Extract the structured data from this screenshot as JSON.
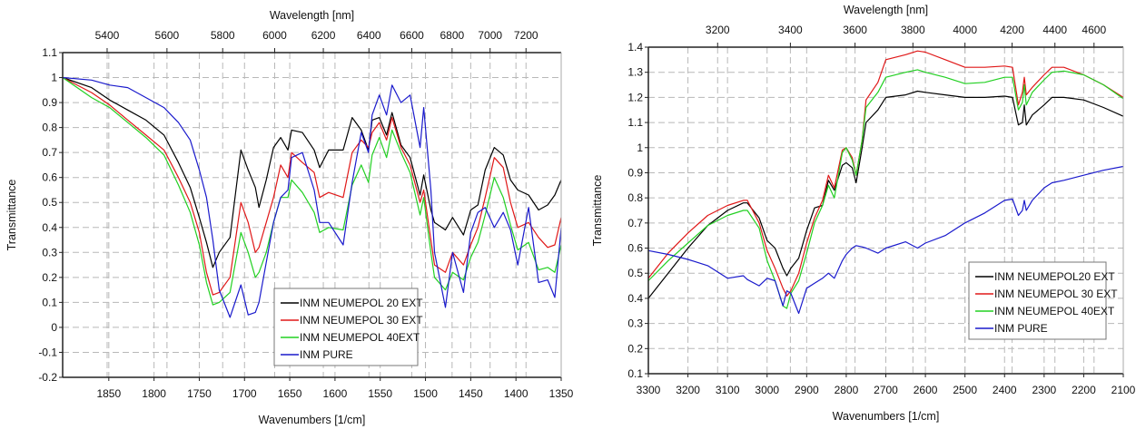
{
  "chart_data": [
    {
      "type": "line",
      "title": "",
      "xlabel": "Wavenumbers [1/cm]",
      "x2label": "Wavelength [nm]",
      "ylabel": "Transmittance",
      "xlim": [
        1901,
        1350
      ],
      "ylim": [
        -0.2,
        1.1
      ],
      "xticks": [
        1850,
        1800,
        1750,
        1700,
        1650,
        1600,
        1550,
        1500,
        1450,
        1400,
        1350
      ],
      "x2ticks": [
        5400,
        5600,
        5800,
        6000,
        6200,
        6400,
        6600,
        6800,
        7000,
        7200
      ],
      "yticks": [
        -0.2,
        -0.1,
        0,
        0.1,
        0.2,
        0.3,
        0.4,
        0.5,
        0.6,
        0.7,
        0.8,
        0.9,
        1,
        1.1
      ],
      "grid": true,
      "legend_position": "bottom-center",
      "x": [
        1901,
        1869,
        1849,
        1829,
        1809,
        1789,
        1773,
        1760,
        1750,
        1742,
        1735,
        1728,
        1716,
        1704,
        1696,
        1688,
        1684,
        1676,
        1668,
        1660,
        1652,
        1648,
        1636,
        1623,
        1617,
        1607,
        1591,
        1581,
        1571,
        1563,
        1559,
        1551,
        1543,
        1537,
        1527,
        1517,
        1506,
        1502,
        1494,
        1490,
        1478,
        1470,
        1458,
        1450,
        1442,
        1434,
        1424,
        1414,
        1406,
        1398,
        1386,
        1375,
        1365,
        1357,
        1350
      ],
      "series": [
        {
          "name": "INM NEUMEPOL 20 EXT",
          "color": "#000000",
          "values": [
            1.0,
            0.96,
            0.91,
            0.87,
            0.83,
            0.77,
            0.66,
            0.56,
            0.44,
            0.34,
            0.24,
            0.3,
            0.36,
            0.71,
            0.63,
            0.56,
            0.48,
            0.59,
            0.72,
            0.76,
            0.71,
            0.79,
            0.78,
            0.71,
            0.64,
            0.71,
            0.71,
            0.84,
            0.79,
            0.71,
            0.83,
            0.84,
            0.77,
            0.86,
            0.73,
            0.68,
            0.53,
            0.61,
            0.47,
            0.42,
            0.39,
            0.44,
            0.37,
            0.47,
            0.49,
            0.63,
            0.72,
            0.69,
            0.59,
            0.55,
            0.53,
            0.47,
            0.49,
            0.53,
            0.59
          ]
        },
        {
          "name": "INM NEUMEPOL 30 EXT",
          "color": "#e01818",
          "values": [
            1.0,
            0.94,
            0.89,
            0.83,
            0.77,
            0.71,
            0.6,
            0.5,
            0.38,
            0.22,
            0.13,
            0.14,
            0.2,
            0.5,
            0.42,
            0.3,
            0.32,
            0.42,
            0.52,
            0.65,
            0.6,
            0.7,
            0.66,
            0.62,
            0.52,
            0.54,
            0.52,
            0.7,
            0.75,
            0.72,
            0.78,
            0.82,
            0.75,
            0.84,
            0.72,
            0.65,
            0.5,
            0.55,
            0.35,
            0.25,
            0.22,
            0.3,
            0.25,
            0.33,
            0.4,
            0.52,
            0.68,
            0.64,
            0.5,
            0.4,
            0.42,
            0.36,
            0.32,
            0.33,
            0.44
          ]
        },
        {
          "name": "INM NEUMEPOL 40EXT",
          "color": "#22d022",
          "values": [
            1.0,
            0.92,
            0.88,
            0.82,
            0.76,
            0.69,
            0.57,
            0.46,
            0.33,
            0.18,
            0.09,
            0.1,
            0.14,
            0.38,
            0.3,
            0.2,
            0.22,
            0.3,
            0.42,
            0.52,
            0.52,
            0.59,
            0.54,
            0.46,
            0.38,
            0.4,
            0.39,
            0.57,
            0.65,
            0.58,
            0.69,
            0.76,
            0.68,
            0.79,
            0.7,
            0.62,
            0.45,
            0.52,
            0.3,
            0.2,
            0.15,
            0.22,
            0.19,
            0.28,
            0.34,
            0.45,
            0.6,
            0.52,
            0.41,
            0.31,
            0.34,
            0.23,
            0.24,
            0.22,
            0.33
          ]
        },
        {
          "name": "INM PURE",
          "color": "#1a1acc",
          "values": [
            1.0,
            0.99,
            0.97,
            0.96,
            0.92,
            0.88,
            0.82,
            0.75,
            0.63,
            0.52,
            0.35,
            0.15,
            0.04,
            0.17,
            0.05,
            0.06,
            0.1,
            0.26,
            0.42,
            0.52,
            0.55,
            0.68,
            0.7,
            0.55,
            0.42,
            0.42,
            0.33,
            0.58,
            0.78,
            0.7,
            0.85,
            0.93,
            0.85,
            0.97,
            0.9,
            0.93,
            0.72,
            0.88,
            0.55,
            0.3,
            0.08,
            0.3,
            0.14,
            0.38,
            0.46,
            0.48,
            0.4,
            0.46,
            0.39,
            0.25,
            0.48,
            0.18,
            0.19,
            0.12,
            0.4
          ]
        }
      ]
    },
    {
      "type": "line",
      "title": "",
      "xlabel": "Wavenumbers [1/cm]",
      "x2label": "Wavelength [nm]",
      "ylabel": "Transmittance",
      "xlim": [
        3300,
        2100
      ],
      "ylim": [
        0.1,
        1.4
      ],
      "xticks": [
        3300,
        3200,
        3100,
        3000,
        2900,
        2800,
        2700,
        2600,
        2500,
        2400,
        2300,
        2200,
        2100
      ],
      "x2ticks": [
        3200,
        3400,
        3600,
        3800,
        4000,
        4200,
        4400,
        4600
      ],
      "yticks": [
        0.1,
        0.2,
        0.3,
        0.4,
        0.5,
        0.6,
        0.7,
        0.8,
        0.9,
        1,
        1.1,
        1.2,
        1.3,
        1.4
      ],
      "grid": true,
      "legend_position": "bottom-right",
      "x": [
        3300,
        3250,
        3200,
        3150,
        3100,
        3060,
        3050,
        3020,
        3000,
        2980,
        2960,
        2950,
        2940,
        2920,
        2900,
        2880,
        2860,
        2845,
        2830,
        2810,
        2800,
        2785,
        2775,
        2760,
        2750,
        2720,
        2700,
        2650,
        2620,
        2600,
        2550,
        2500,
        2450,
        2400,
        2380,
        2365,
        2355,
        2350,
        2345,
        2330,
        2300,
        2280,
        2250,
        2200,
        2150,
        2100
      ],
      "series": [
        {
          "name": "INM NEUMEPOL20 EXT",
          "color": "#000000",
          "values": [
            0.4,
            0.5,
            0.6,
            0.69,
            0.75,
            0.78,
            0.78,
            0.72,
            0.63,
            0.6,
            0.52,
            0.49,
            0.52,
            0.56,
            0.67,
            0.76,
            0.77,
            0.87,
            0.83,
            0.93,
            0.94,
            0.92,
            0.86,
            1.0,
            1.1,
            1.15,
            1.2,
            1.21,
            1.225,
            1.22,
            1.21,
            1.2,
            1.2,
            1.205,
            1.2,
            1.09,
            1.1,
            1.17,
            1.09,
            1.13,
            1.17,
            1.2,
            1.2,
            1.19,
            1.16,
            1.125
          ]
        },
        {
          "name": "INM NEUMEPOL 30 EXT",
          "color": "#e01818",
          "values": [
            0.48,
            0.58,
            0.66,
            0.73,
            0.77,
            0.79,
            0.79,
            0.7,
            0.59,
            0.52,
            0.44,
            0.41,
            0.43,
            0.5,
            0.62,
            0.72,
            0.79,
            0.89,
            0.84,
            0.99,
            1.0,
            0.96,
            0.89,
            1.03,
            1.19,
            1.26,
            1.35,
            1.37,
            1.385,
            1.38,
            1.35,
            1.32,
            1.32,
            1.325,
            1.32,
            1.17,
            1.22,
            1.28,
            1.21,
            1.24,
            1.29,
            1.32,
            1.32,
            1.29,
            1.25,
            1.2
          ]
        },
        {
          "name": "INM NEUMEPOL 40EXT",
          "color": "#22d022",
          "values": [
            0.47,
            0.55,
            0.62,
            0.69,
            0.73,
            0.75,
            0.75,
            0.68,
            0.55,
            0.47,
            0.37,
            0.36,
            0.42,
            0.47,
            0.58,
            0.7,
            0.77,
            0.85,
            0.8,
            0.98,
            1.0,
            0.95,
            0.89,
            1.03,
            1.16,
            1.22,
            1.28,
            1.3,
            1.31,
            1.3,
            1.28,
            1.255,
            1.26,
            1.28,
            1.28,
            1.15,
            1.18,
            1.25,
            1.17,
            1.22,
            1.27,
            1.3,
            1.305,
            1.29,
            1.25,
            1.195
          ]
        },
        {
          "name": "INM PURE",
          "color": "#1a1acc",
          "values": [
            0.59,
            0.575,
            0.555,
            0.53,
            0.48,
            0.49,
            0.475,
            0.45,
            0.48,
            0.47,
            0.37,
            0.43,
            0.42,
            0.34,
            0.44,
            0.46,
            0.48,
            0.5,
            0.48,
            0.55,
            0.575,
            0.6,
            0.61,
            0.605,
            0.6,
            0.58,
            0.6,
            0.625,
            0.6,
            0.62,
            0.65,
            0.7,
            0.74,
            0.79,
            0.795,
            0.73,
            0.75,
            0.79,
            0.75,
            0.79,
            0.84,
            0.86,
            0.87,
            0.89,
            0.91,
            0.925
          ]
        }
      ]
    }
  ]
}
